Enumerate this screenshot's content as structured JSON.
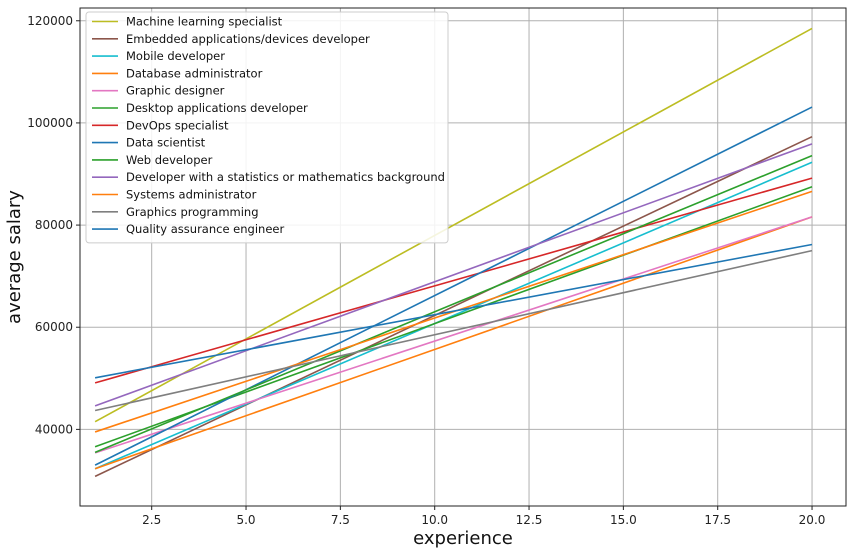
{
  "chart_data": {
    "type": "line",
    "xlabel": "experience",
    "ylabel": "average salary",
    "xlim": [
      0.6,
      20.9
    ],
    "ylim": [
      25000,
      122500
    ],
    "x_ticks": [
      2.5,
      5.0,
      7.5,
      10.0,
      12.5,
      15.0,
      17.5,
      20.0
    ],
    "x_tick_labels": [
      "2.5",
      "5.0",
      "7.5",
      "10.0",
      "12.5",
      "15.0",
      "17.5",
      "20.0"
    ],
    "y_ticks": [
      40000,
      60000,
      80000,
      100000,
      120000
    ],
    "y_tick_labels": [
      "40000",
      "60000",
      "80000",
      "100000",
      "120000"
    ],
    "grid": true,
    "legend_position": "top-left",
    "series": [
      {
        "name": "Machine learning specialist",
        "color": "#bcbd22",
        "x": [
          1,
          20
        ],
        "y": [
          41500,
          118500
        ]
      },
      {
        "name": "Embedded applications/devices developer",
        "color": "#8c564b",
        "x": [
          1,
          20
        ],
        "y": [
          30800,
          97300
        ]
      },
      {
        "name": "Mobile developer",
        "color": "#17becf",
        "x": [
          1,
          20
        ],
        "y": [
          32300,
          92300
        ]
      },
      {
        "name": "Database administrator",
        "color": "#ff7f0e",
        "x": [
          1,
          20
        ],
        "y": [
          32300,
          81600
        ]
      },
      {
        "name": "Graphic designer",
        "color": "#e377c2",
        "x": [
          1,
          20
        ],
        "y": [
          35400,
          81600
        ]
      },
      {
        "name": "Desktop applications developer",
        "color": "#2ca02c",
        "x": [
          1,
          20
        ],
        "y": [
          36600,
          87500
        ]
      },
      {
        "name": "DevOps specialist",
        "color": "#d62728",
        "x": [
          1,
          20
        ],
        "y": [
          49100,
          89200
        ]
      },
      {
        "name": "Data scientist",
        "color": "#1f77b4",
        "x": [
          1,
          20
        ],
        "y": [
          33000,
          103100
        ]
      },
      {
        "name": "Web developer",
        "color": "#2ca02c",
        "x": [
          1,
          20
        ],
        "y": [
          35500,
          93600
        ]
      },
      {
        "name": "Developer with a statistics or mathematics background",
        "color": "#9467bd",
        "x": [
          1,
          20
        ],
        "y": [
          44600,
          95900
        ]
      },
      {
        "name": "Systems administrator",
        "color": "#ff7f0e",
        "x": [
          1,
          20
        ],
        "y": [
          39500,
          86600
        ]
      },
      {
        "name": "Graphics programming",
        "color": "#7f7f7f",
        "x": [
          1,
          20
        ],
        "y": [
          43700,
          75000
        ]
      },
      {
        "name": "Quality assurance engineer",
        "color": "#1f77b4",
        "x": [
          1,
          20
        ],
        "y": [
          50100,
          76200
        ]
      }
    ]
  }
}
